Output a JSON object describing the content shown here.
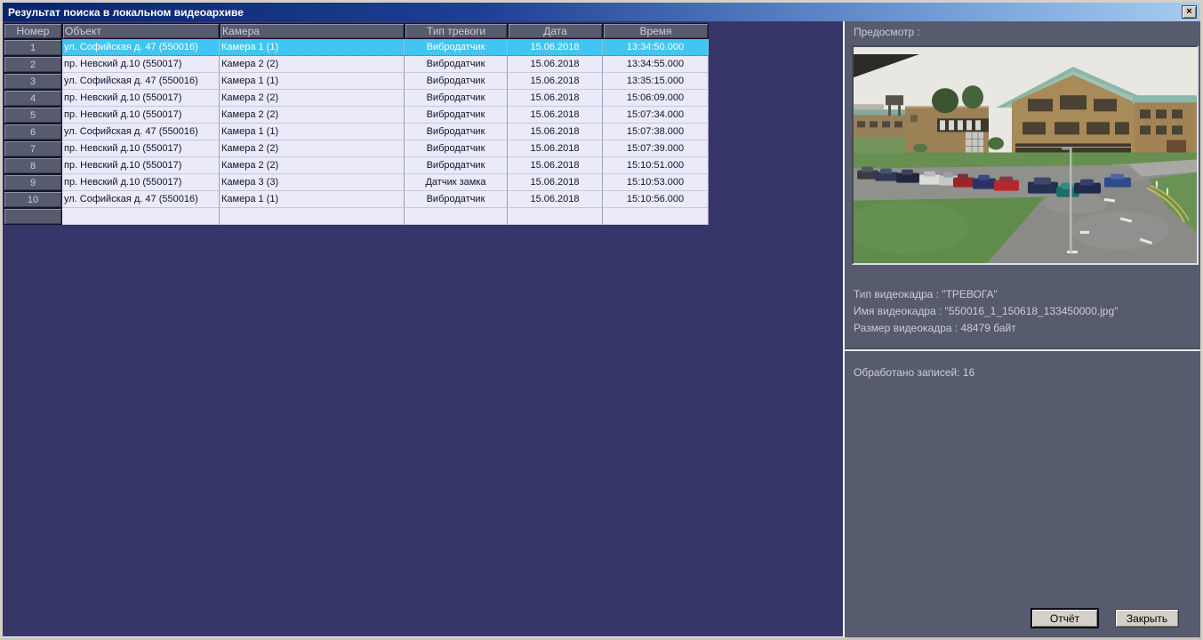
{
  "window": {
    "title": "Результат поиска в локальном видеоархиве",
    "close_glyph": "×"
  },
  "table": {
    "columns": [
      "Номер",
      "Объект",
      "Камера",
      "Тип тревоги",
      "Дата",
      "Время"
    ],
    "rows": [
      {
        "num": "1",
        "object": "ул. Софийская д. 47 (550016)",
        "camera": "Камера 1 (1)",
        "alarm": "Вибродатчик",
        "date": "15.06.2018",
        "time": "13:34:50.000",
        "selected": true
      },
      {
        "num": "2",
        "object": "пр. Невский д.10 (550017)",
        "camera": "Камера 2 (2)",
        "alarm": "Вибродатчик",
        "date": "15.06.2018",
        "time": "13:34:55.000",
        "selected": false
      },
      {
        "num": "3",
        "object": "ул. Софийская д. 47 (550016)",
        "camera": "Камера 1 (1)",
        "alarm": "Вибродатчик",
        "date": "15.06.2018",
        "time": "13:35:15.000",
        "selected": false
      },
      {
        "num": "4",
        "object": "пр. Невский д.10 (550017)",
        "camera": "Камера 2 (2)",
        "alarm": "Вибродатчик",
        "date": "15.06.2018",
        "time": "15:06:09.000",
        "selected": false
      },
      {
        "num": "5",
        "object": "пр. Невский д.10 (550017)",
        "camera": "Камера 2 (2)",
        "alarm": "Вибродатчик",
        "date": "15.06.2018",
        "time": "15:07:34.000",
        "selected": false
      },
      {
        "num": "6",
        "object": "ул. Софийская д. 47 (550016)",
        "camera": "Камера 1 (1)",
        "alarm": "Вибродатчик",
        "date": "15.06.2018",
        "time": "15:07:38.000",
        "selected": false
      },
      {
        "num": "7",
        "object": "пр. Невский д.10 (550017)",
        "camera": "Камера 2 (2)",
        "alarm": "Вибродатчик",
        "date": "15.06.2018",
        "time": "15:07:39.000",
        "selected": false
      },
      {
        "num": "8",
        "object": "пр. Невский д.10 (550017)",
        "camera": "Камера 2 (2)",
        "alarm": "Вибродатчик",
        "date": "15.06.2018",
        "time": "15:10:51.000",
        "selected": false
      },
      {
        "num": "9",
        "object": "пр. Невский д.10 (550017)",
        "camera": "Камера 3 (3)",
        "alarm": "Датчик замка",
        "date": "15.06.2018",
        "time": "15:10:53.000",
        "selected": false
      },
      {
        "num": "10",
        "object": "ул. Софийская д. 47 (550016)",
        "camera": "Камера 1 (1)",
        "alarm": "Вибродатчик",
        "date": "15.06.2018",
        "time": "15:10:56.000",
        "selected": false
      }
    ],
    "has_trailing_empty_row": true
  },
  "preview": {
    "label": "Предосмотр :",
    "info": {
      "type": "Тип видеокадра : \"ТРЕВОГА\"",
      "name": "Имя видеокадра : \"550016_1_150618_133450000.jpg\"",
      "size": "Размер видеокадра : 48479 байт"
    },
    "processed": "Обработано записей: 16"
  },
  "buttons": {
    "report": "Отчёт",
    "close": "Закрыть"
  },
  "colors": {
    "title_gradient_start": "#0a246a",
    "title_gradient_end": "#a8cbf0",
    "dialog_background": "#363668",
    "panel_background": "#575b6e",
    "row_background": "#eaeaf8",
    "selected_row_background": "#41c5f2",
    "header_cell_background": "#575b6e",
    "button_face": "#d4d0c8"
  }
}
